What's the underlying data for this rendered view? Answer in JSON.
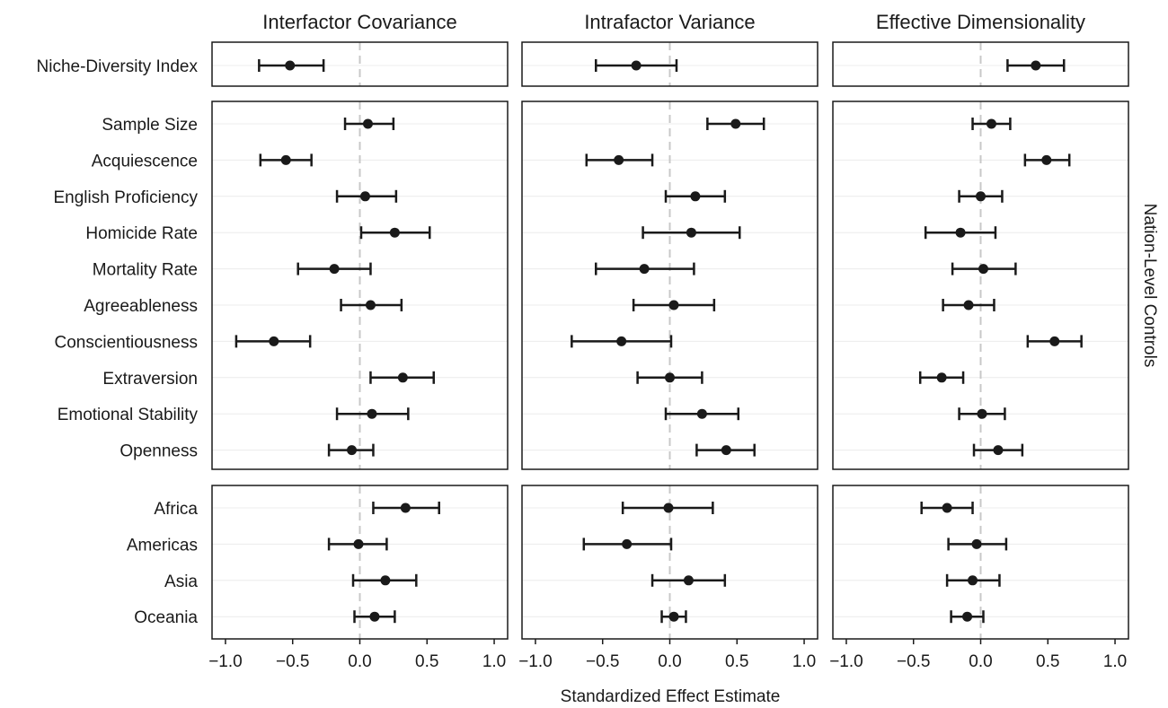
{
  "chart_data": {
    "type": "scatter",
    "subtype": "forest-plot",
    "xlabel": "Standardized Effect Estimate",
    "right_label": "Nation-Level Controls",
    "xlim": [
      -1.1,
      1.1
    ],
    "x_ticks": [
      -1.0,
      -0.5,
      0.0,
      0.5,
      1.0
    ],
    "x_tick_labels": [
      "−1.0",
      "−0.5",
      "0.0",
      "0.5",
      "1.0"
    ],
    "reference_line": 0,
    "grid": "horizontal",
    "columns": [
      "Interfactor Covariance",
      "Intrafactor Variance",
      "Effective Dimensionality"
    ],
    "groups": [
      {
        "rows": [
          "Niche-Diversity Index"
        ]
      },
      {
        "rows": [
          "Sample Size",
          "Acquiescence",
          "English Proficiency",
          "Homicide Rate",
          "Mortality Rate",
          "Agreeableness",
          "Conscientiousness",
          "Extraversion",
          "Emotional Stability",
          "Openness"
        ]
      },
      {
        "rows": [
          "Africa",
          "Americas",
          "Asia",
          "Oceania"
        ]
      }
    ],
    "estimates": {
      "Interfactor Covariance": [
        [
          [
            -0.52,
            -0.75,
            -0.27
          ]
        ],
        [
          [
            0.06,
            -0.11,
            0.25
          ],
          [
            -0.55,
            -0.74,
            -0.36
          ],
          [
            0.04,
            -0.17,
            0.27
          ],
          [
            0.26,
            0.01,
            0.52
          ],
          [
            -0.19,
            -0.46,
            0.08
          ],
          [
            0.08,
            -0.14,
            0.31
          ],
          [
            -0.64,
            -0.92,
            -0.37
          ],
          [
            0.32,
            0.08,
            0.55
          ],
          [
            0.09,
            -0.17,
            0.36
          ],
          [
            -0.06,
            -0.23,
            0.1
          ]
        ],
        [
          [
            0.34,
            0.1,
            0.59
          ],
          [
            -0.01,
            -0.23,
            0.2
          ],
          [
            0.19,
            -0.05,
            0.42
          ],
          [
            0.11,
            -0.04,
            0.26
          ]
        ]
      ],
      "Intrafactor Variance": [
        [
          [
            -0.25,
            -0.55,
            0.05
          ]
        ],
        [
          [
            0.49,
            0.28,
            0.7
          ],
          [
            -0.38,
            -0.62,
            -0.13
          ],
          [
            0.19,
            -0.03,
            0.41
          ],
          [
            0.16,
            -0.2,
            0.52
          ],
          [
            -0.19,
            -0.55,
            0.18
          ],
          [
            0.03,
            -0.27,
            0.33
          ],
          [
            -0.36,
            -0.73,
            0.01
          ],
          [
            0.0,
            -0.24,
            0.24
          ],
          [
            0.24,
            -0.03,
            0.51
          ],
          [
            0.42,
            0.2,
            0.63
          ]
        ],
        [
          [
            -0.01,
            -0.35,
            0.32
          ],
          [
            -0.32,
            -0.64,
            0.01
          ],
          [
            0.14,
            -0.13,
            0.41
          ],
          [
            0.03,
            -0.06,
            0.12
          ]
        ]
      ],
      "Effective Dimensionality": [
        [
          [
            0.41,
            0.2,
            0.62
          ]
        ],
        [
          [
            0.08,
            -0.06,
            0.22
          ],
          [
            0.49,
            0.33,
            0.66
          ],
          [
            0.0,
            -0.16,
            0.16
          ],
          [
            -0.15,
            -0.41,
            0.11
          ],
          [
            0.02,
            -0.21,
            0.26
          ],
          [
            -0.09,
            -0.28,
            0.1
          ],
          [
            0.55,
            0.35,
            0.75
          ],
          [
            -0.29,
            -0.45,
            -0.13
          ],
          [
            0.01,
            -0.16,
            0.18
          ],
          [
            0.13,
            -0.05,
            0.31
          ]
        ],
        [
          [
            -0.25,
            -0.44,
            -0.06
          ],
          [
            -0.03,
            -0.24,
            0.19
          ],
          [
            -0.06,
            -0.25,
            0.14
          ],
          [
            -0.1,
            -0.22,
            0.02
          ]
        ]
      ]
    }
  },
  "colors": {
    "marker": "#1a1a1a",
    "error_bar": "#1a1a1a",
    "reference_line": "#c8c8c8",
    "gridline": "#ececec",
    "panel_border": "#1a1a1a"
  }
}
